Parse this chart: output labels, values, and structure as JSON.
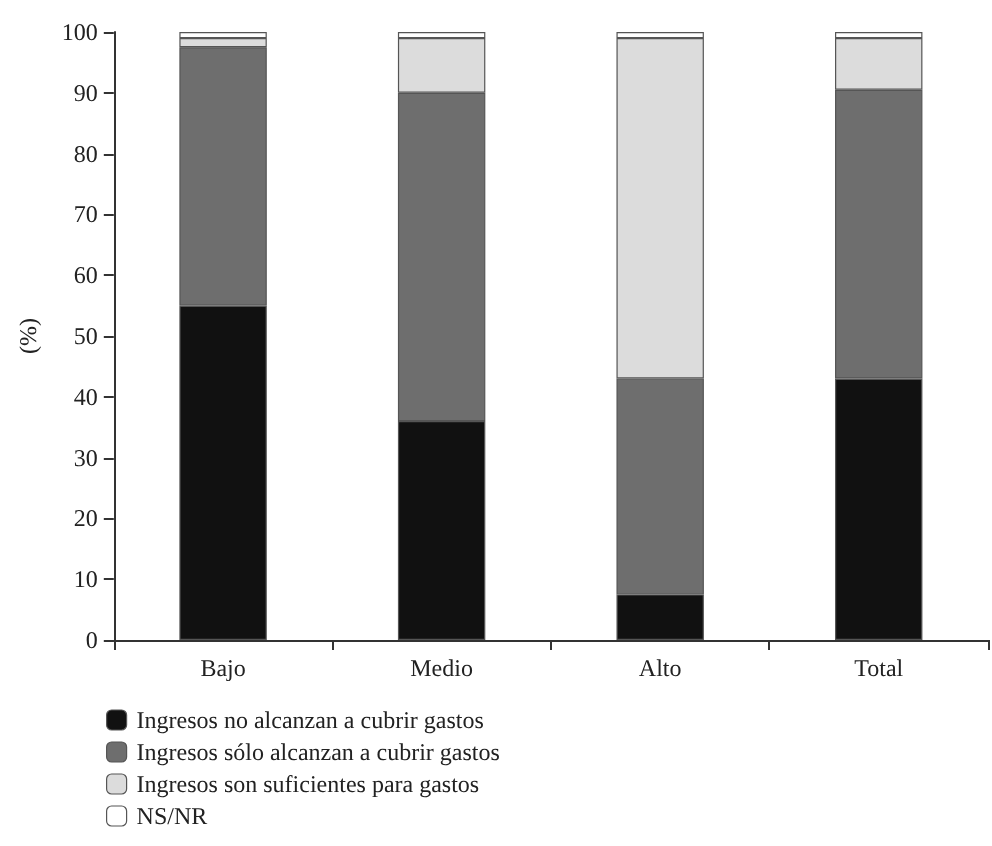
{
  "chart_data": {
    "type": "bar",
    "stacked": true,
    "ylabel": "(%)",
    "categories": [
      "Bajo",
      "Medio",
      "Alto",
      "Total"
    ],
    "series": [
      {
        "name": "Ingresos no alcanzan a cubrir gastos",
        "color": "#111111",
        "values": [
          55,
          36,
          7.5,
          43
        ]
      },
      {
        "name": "Ingresos sólo alcanzan a cubrir gastos",
        "color": "#6e6e6e",
        "values": [
          42.5,
          54,
          35.5,
          47.5
        ]
      },
      {
        "name": "Ingresos son suficientes para gastos",
        "color": "#dcdcdc",
        "values": [
          1.5,
          9,
          56,
          8.5
        ]
      },
      {
        "name": "NS/NR",
        "color": "#ffffff",
        "values": [
          1,
          1,
          1,
          1
        ]
      }
    ],
    "ylim": [
      0,
      100
    ],
    "yticks": [
      0,
      10,
      20,
      30,
      40,
      50,
      60,
      70,
      80,
      90,
      100
    ],
    "grid": false,
    "legend": "bottom left"
  }
}
